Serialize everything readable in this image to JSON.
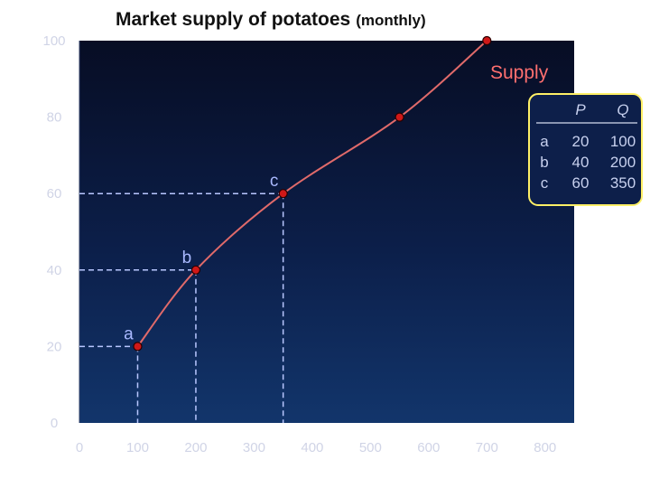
{
  "chart_data": {
    "type": "line",
    "title": "Market supply of potatoes",
    "subtitle": "(monthly)",
    "xlabel": "",
    "ylabel": "",
    "xlim": [
      0,
      850
    ],
    "ylim": [
      0,
      100
    ],
    "x_ticks": [
      "0",
      "100",
      "200",
      "300",
      "400",
      "500",
      "600",
      "700",
      "800"
    ],
    "y_ticks": [
      "0",
      "20",
      "40",
      "60",
      "80",
      "100"
    ],
    "grid": false,
    "series": [
      {
        "name": "Supply",
        "color": "#e06a6a",
        "points": [
          {
            "x": 100,
            "y": 20
          },
          {
            "x": 200,
            "y": 40
          },
          {
            "x": 350,
            "y": 60
          },
          {
            "x": 550,
            "y": 80
          },
          {
            "x": 700,
            "y": 100
          }
        ]
      }
    ],
    "labeled_points": [
      {
        "label": "a",
        "x": 100,
        "y": 20
      },
      {
        "label": "b",
        "x": 200,
        "y": 40
      },
      {
        "label": "c",
        "x": 350,
        "y": 60
      }
    ],
    "table": {
      "headers": [
        "",
        "P",
        "Q"
      ],
      "rows": [
        [
          "a",
          "20",
          "100"
        ],
        [
          "b",
          "40",
          "200"
        ],
        [
          "c",
          "60",
          "350"
        ]
      ]
    }
  }
}
